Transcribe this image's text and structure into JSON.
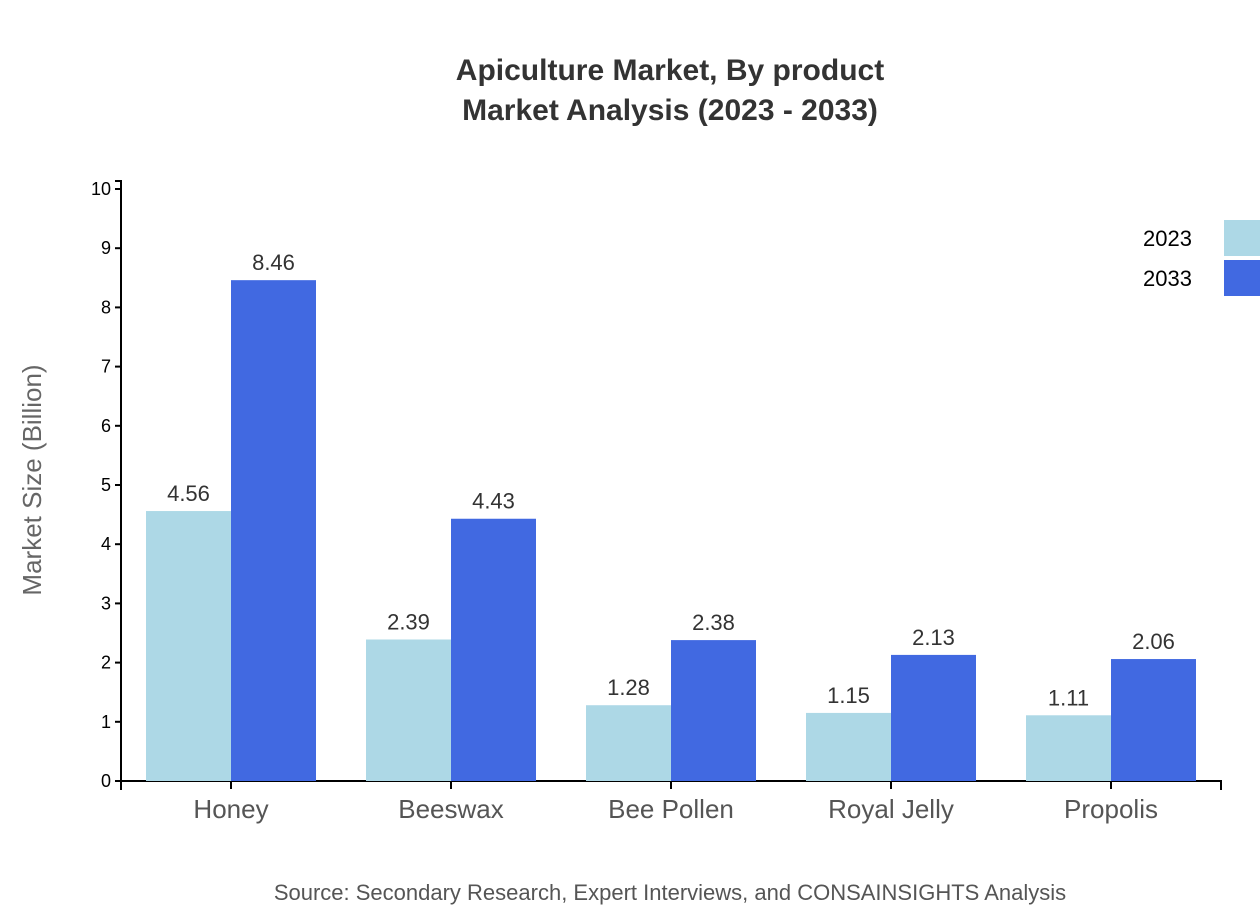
{
  "chart_data": {
    "type": "bar",
    "title": "Apiculture Market, By product",
    "subtitle": "Market Analysis (2023 - 2033)",
    "xlabel": "",
    "ylabel": "Market Size (Billion)",
    "ylim": [
      0,
      10
    ],
    "yticks": [
      0,
      1,
      2,
      3,
      4,
      5,
      6,
      7,
      8,
      9,
      10
    ],
    "grid": false,
    "legend_position": "top-right",
    "categories": [
      "Honey",
      "Beeswax",
      "Bee Pollen",
      "Royal Jelly",
      "Propolis"
    ],
    "series": [
      {
        "name": "2023",
        "color": "#add8e6",
        "values": [
          4.56,
          2.39,
          1.28,
          1.15,
          1.11
        ]
      },
      {
        "name": "2033",
        "color": "#4169e1",
        "values": [
          8.46,
          4.43,
          2.38,
          2.13,
          2.06
        ]
      }
    ],
    "source": "Source: Secondary Research, Expert Interviews, and CONSAINSIGHTS Analysis"
  }
}
